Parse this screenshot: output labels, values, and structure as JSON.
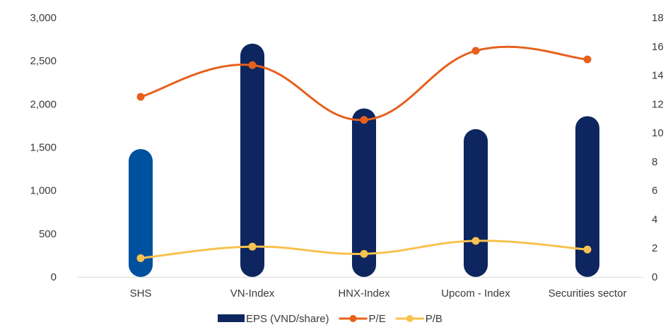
{
  "chart_data": {
    "type": "bar",
    "title": "",
    "categories": [
      "SHS",
      "VN-Index",
      "HNX-Index",
      "Upcom - Index",
      "Securities sector"
    ],
    "series": [
      {
        "name": "EPS (VND/share)",
        "type": "bar",
        "axis": "left",
        "values": [
          1480,
          2700,
          1950,
          1710,
          1860
        ],
        "colors": [
          "#0050A0",
          "#0D2660",
          "#0D2660",
          "#0D2660",
          "#0D2660"
        ]
      },
      {
        "name": "P/E",
        "type": "line",
        "axis": "right",
        "smooth": true,
        "values": [
          12.5,
          14.7,
          10.9,
          15.7,
          15.1
        ],
        "color": "#E8601C"
      },
      {
        "name": "P/B",
        "type": "line",
        "axis": "right",
        "smooth": true,
        "values": [
          1.3,
          2.1,
          1.6,
          2.5,
          1.9
        ],
        "color": "#F8C24E"
      }
    ],
    "y_left": {
      "range": [
        0,
        3000
      ],
      "ticks": [
        "0",
        "500",
        "1,000",
        "1,500",
        "2,000",
        "2,500",
        "3,000"
      ]
    },
    "y_right": {
      "range": [
        0,
        18
      ],
      "ticks": [
        "0",
        "2",
        "4",
        "6",
        "8",
        "10",
        "12",
        "14",
        "16",
        "18"
      ]
    },
    "grid": false,
    "legend_position": "bottom"
  }
}
